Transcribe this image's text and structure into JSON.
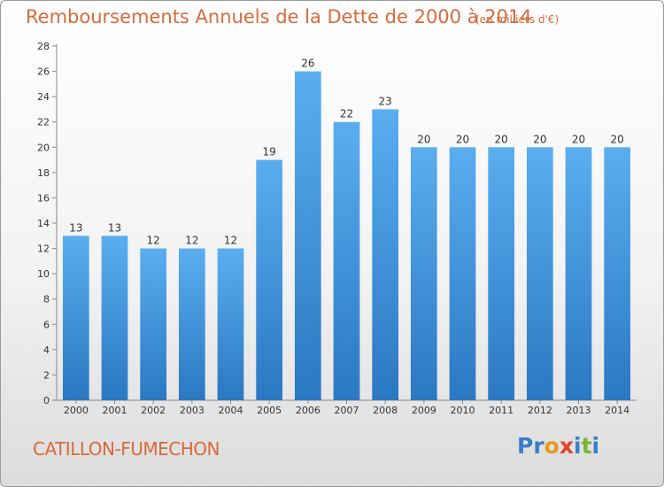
{
  "title": "Remboursements Annuels de la Dette de 2000 à 2014",
  "unit": "(en milliers d'€)",
  "place_name": "CATILLON-FUMECHON",
  "logo": {
    "text": "Proxiti",
    "letter_colors": [
      "#3a7dc8",
      "#3a7dc8",
      "#e69a1f",
      "#e6402a",
      "#3a7dc8",
      "#7ab42c",
      "#3a7dc8"
    ]
  },
  "colors": {
    "bar_light": "#5aaef0",
    "bar_dark": "#2a78c2",
    "title": "#d86a3a"
  },
  "chart_data": {
    "type": "bar",
    "title": "Remboursements Annuels de la Dette de 2000 à 2014",
    "xlabel": "",
    "ylabel": "",
    "categories": [
      "2000",
      "2001",
      "2002",
      "2003",
      "2004",
      "2005",
      "2006",
      "2007",
      "2008",
      "2009",
      "2010",
      "2011",
      "2012",
      "2013",
      "2014"
    ],
    "values": [
      13,
      13,
      12,
      12,
      12,
      19,
      26,
      22,
      23,
      20,
      20,
      20,
      20,
      20,
      20
    ],
    "ylim": [
      0,
      28
    ],
    "yticks": [
      0,
      2,
      4,
      6,
      8,
      10,
      12,
      14,
      16,
      18,
      20,
      22,
      24,
      26,
      28
    ],
    "grid": false,
    "legend": "none"
  }
}
